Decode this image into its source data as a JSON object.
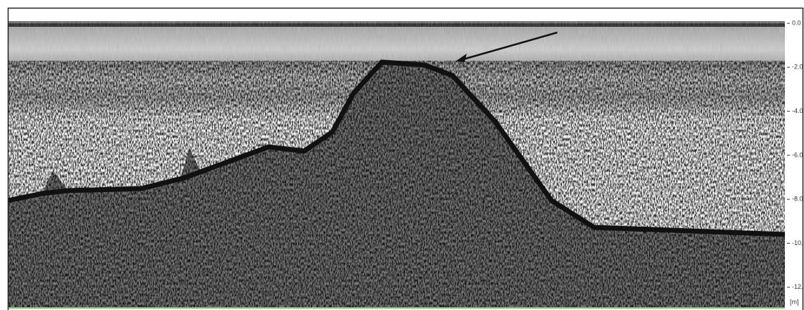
{
  "depth_axis": {
    "tick_labels": [
      "0.0",
      "-2.0",
      "-4.0",
      "-6.0",
      "-8.0",
      "-10.",
      "-12."
    ],
    "unit_label": "[m]"
  }
}
